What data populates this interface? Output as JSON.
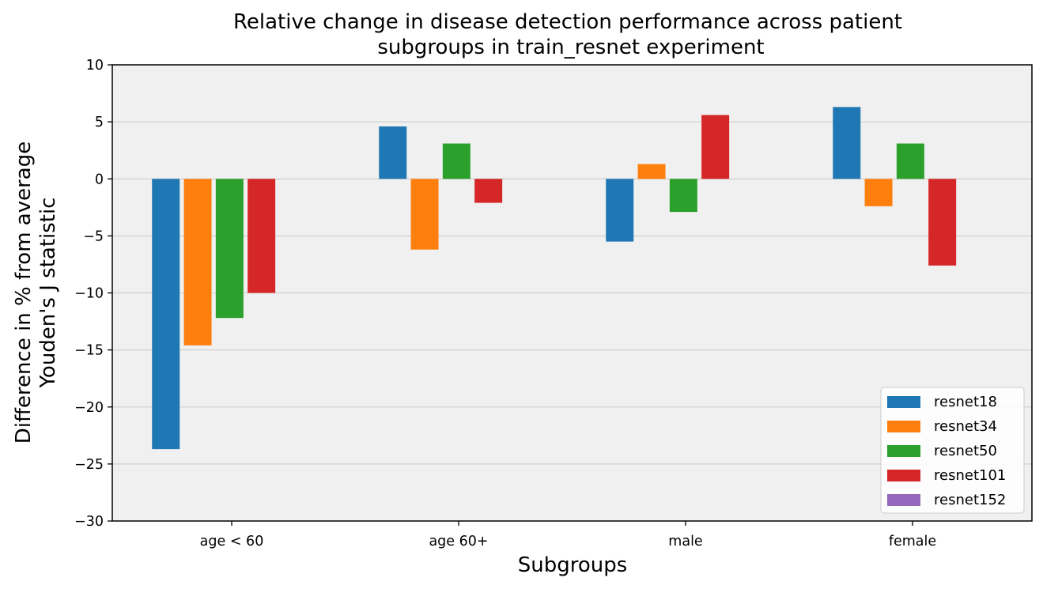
{
  "chart_data": {
    "type": "bar",
    "title_line1": "Relative change in disease detection performance across patient",
    "title_line2": "subgroups in train_resnet experiment",
    "xlabel": "Subgroups",
    "ylabel_line1": "Difference in % from average",
    "ylabel_line2": "Youden's J statistic",
    "categories": [
      "age < 60",
      "age 60+",
      "male",
      "female"
    ],
    "ylim": [
      -30,
      10
    ],
    "yticks": [
      10,
      5,
      0,
      -5,
      -10,
      -15,
      -20,
      -25,
      -30
    ],
    "ytick_labels": [
      "10",
      "5",
      "0",
      "−5",
      "−10",
      "−15",
      "−20",
      "−25",
      "−30"
    ],
    "grid": "horizontal",
    "legend_position": "lower right",
    "series": [
      {
        "name": "resnet18",
        "color": "#1f77b4",
        "values": [
          -23.7,
          4.6,
          -5.5,
          6.3
        ]
      },
      {
        "name": "resnet34",
        "color": "#ff7f0e",
        "values": [
          -14.6,
          -6.2,
          1.3,
          -2.4
        ]
      },
      {
        "name": "resnet50",
        "color": "#2ca02c",
        "values": [
          -12.2,
          3.1,
          -2.9,
          3.1
        ]
      },
      {
        "name": "resnet101",
        "color": "#d62728",
        "values": [
          -10.0,
          -2.1,
          5.6,
          -7.6
        ]
      },
      {
        "name": "resnet152",
        "color": "#9467bd",
        "values": [
          null,
          null,
          null,
          null
        ]
      }
    ]
  }
}
